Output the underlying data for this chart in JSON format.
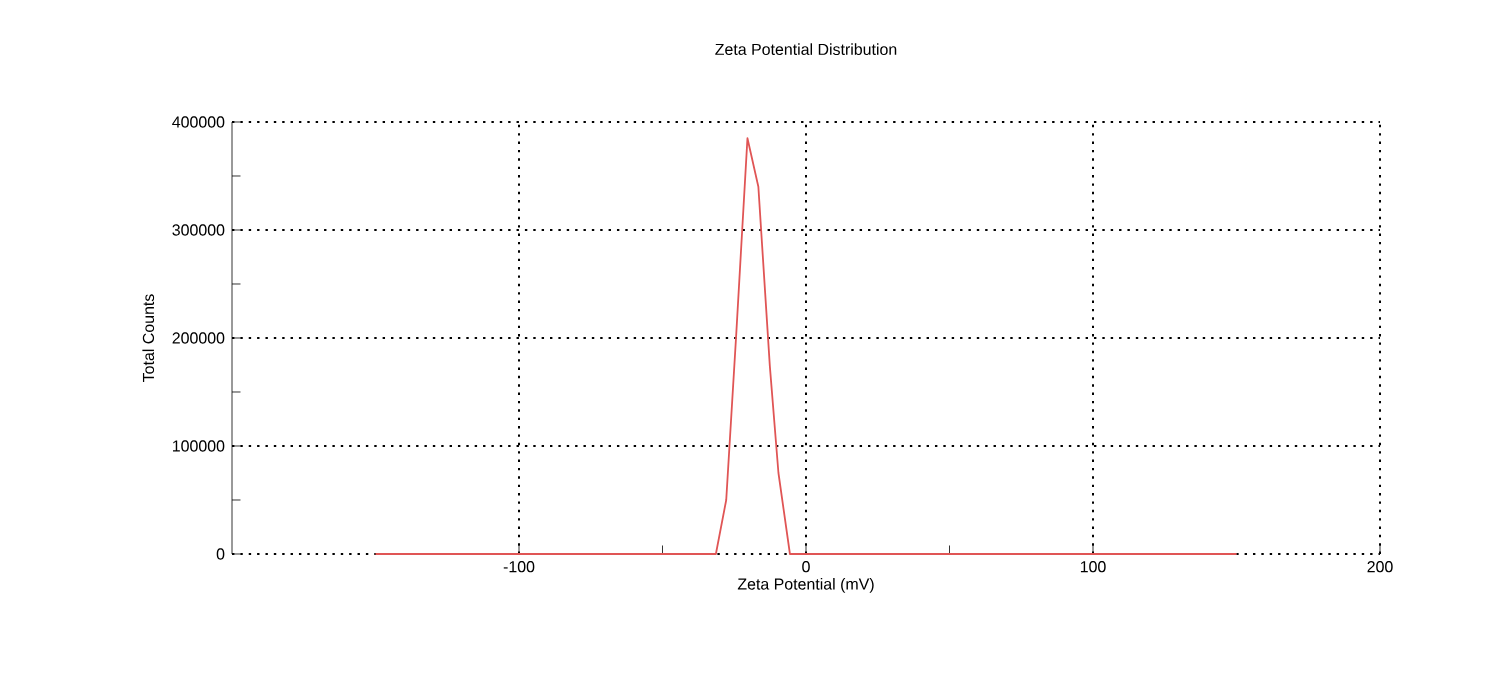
{
  "chart_data": {
    "type": "line",
    "title": "Zeta Potential Distribution",
    "xlabel": "Zeta Potential (mV)",
    "ylabel": "Total Counts",
    "x": [
      -150,
      -31.4,
      -27.8,
      -24.3,
      -20.4,
      -16.6,
      -12.6,
      -9.6,
      -5.6,
      150
    ],
    "series": [
      {
        "color": "#e05555",
        "values": [
          0,
          0,
          50000,
          204000,
          385000,
          340000,
          174000,
          75000,
          0,
          0
        ]
      }
    ],
    "xlim": [
      -200,
      200
    ],
    "ylim": [
      0,
      400000
    ],
    "xticks": [
      {
        "value": -50,
        "label": null
      },
      -100,
      0,
      100,
      200,
      {
        "value": 50,
        "label": null
      }
    ],
    "yticks": [
      0,
      100000,
      200000,
      300000,
      400000,
      {
        "value": 50000,
        "label": null
      },
      {
        "value": 150000,
        "label": null
      },
      {
        "value": 250000,
        "label": null
      },
      {
        "value": 350000,
        "label": null
      }
    ],
    "grid": true,
    "marker": "none",
    "line_style": "solid"
  }
}
